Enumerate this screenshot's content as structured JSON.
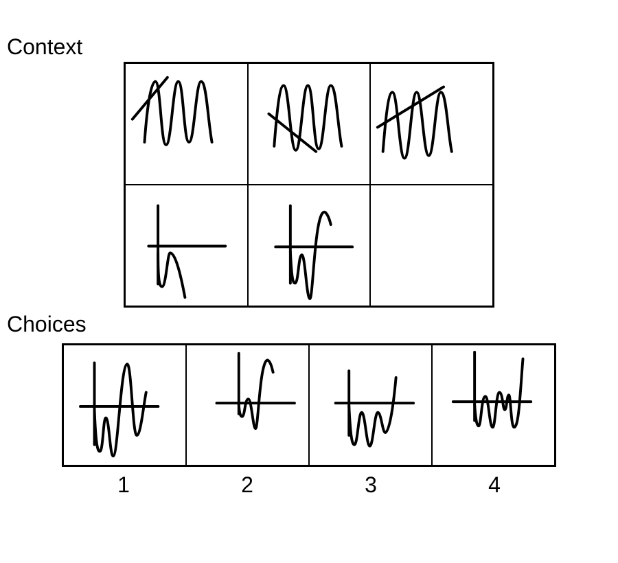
{
  "context": {
    "heading": "Context",
    "cells": [
      {
        "id": "ctx-1",
        "figure": "zigzag-diag-up",
        "empty": false
      },
      {
        "id": "ctx-2",
        "figure": "zigzag-diag-down",
        "empty": false
      },
      {
        "id": "ctx-3",
        "figure": "zigzag-diag-up-right",
        "empty": false
      },
      {
        "id": "ctx-4",
        "figure": "axis-curve-a",
        "empty": false
      },
      {
        "id": "ctx-5",
        "figure": "axis-curve-b",
        "empty": false
      },
      {
        "id": "ctx-6",
        "figure": "",
        "empty": true
      }
    ]
  },
  "choices": {
    "heading": "Choices",
    "options": [
      {
        "label": "1",
        "figure": "axis-wave-tall"
      },
      {
        "label": "2",
        "figure": "axis-hook"
      },
      {
        "label": "3",
        "figure": "axis-w-up"
      },
      {
        "label": "4",
        "figure": "axis-double-w"
      }
    ]
  }
}
